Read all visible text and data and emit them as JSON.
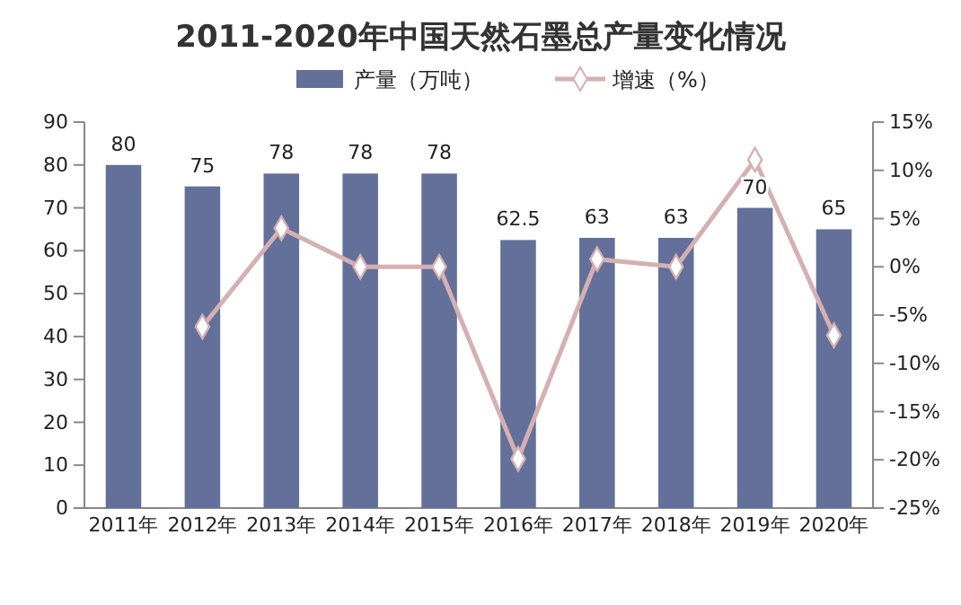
{
  "chart_data": {
    "type": "bar",
    "title": "2011-2020年中国天然石墨总产量变化情况",
    "categories": [
      "2011年",
      "2012年",
      "2013年",
      "2014年",
      "2015年",
      "2016年",
      "2017年",
      "2018年",
      "2019年",
      "2020年"
    ],
    "series": [
      {
        "name": "产量（万吨）",
        "color": "#63709a",
        "values": [
          80,
          75,
          78,
          78,
          78,
          62.5,
          63,
          63,
          70,
          65
        ],
        "value_labels": [
          "80",
          "75",
          "78",
          "78",
          "78",
          "62.5",
          "63",
          "63",
          "70",
          "65"
        ]
      },
      {
        "name": "增速（%）",
        "type": "line",
        "axis": "y2",
        "color": "#d5b0b2",
        "marker": "diamond",
        "values": [
          null,
          -6.2,
          4.0,
          0,
          0,
          -19.9,
          0.8,
          0,
          11.1,
          -7.1
        ]
      }
    ],
    "ylim": [
      0,
      90
    ],
    "yticks": [
      0,
      10,
      20,
      30,
      40,
      50,
      60,
      70,
      80,
      90
    ],
    "y2lim": [
      -25,
      15
    ],
    "y2ticks": [
      {
        "value": -25,
        "label": "-25%"
      },
      {
        "value": -20,
        "label": "-20%"
      },
      {
        "value": -15,
        "label": "-15%"
      },
      {
        "value": -10,
        "label": "-10%"
      },
      {
        "value": -5,
        "label": "-5%"
      },
      {
        "value": 0,
        "label": "0%"
      },
      {
        "value": 5,
        "label": "5%"
      },
      {
        "value": 10,
        "label": "10%"
      },
      {
        "value": 15,
        "label": "15%"
      }
    ],
    "legend": "top"
  }
}
